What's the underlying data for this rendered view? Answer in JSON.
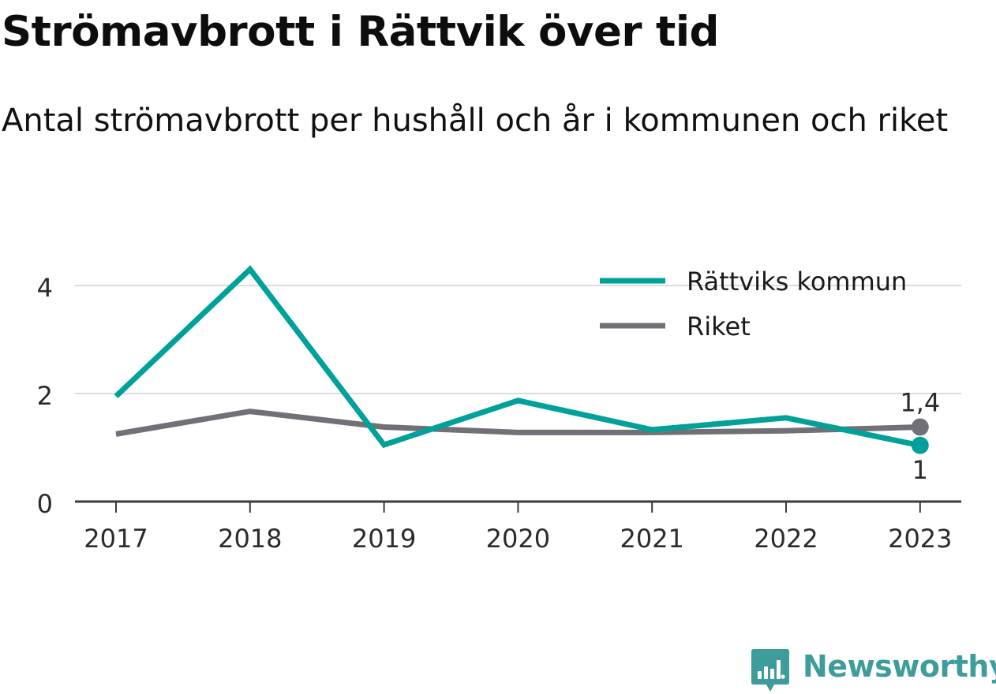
{
  "title": "Strömavbrott i Rättvik över tid",
  "subtitle": "Antal strömavbrott per hushåll och år i kommunen och riket",
  "chart_data": {
    "type": "line",
    "categories": [
      "2017",
      "2018",
      "2019",
      "2020",
      "2021",
      "2022",
      "2023"
    ],
    "series": [
      {
        "name": "Rättviks kommun",
        "color": "#00a19a",
        "values": [
          1.95,
          4.3,
          1.05,
          1.87,
          1.33,
          1.55,
          1.04
        ],
        "end_label": "1"
      },
      {
        "name": "Riket",
        "color": "#727077",
        "values": [
          1.25,
          1.67,
          1.38,
          1.28,
          1.28,
          1.31,
          1.38
        ],
        "end_label": "1,4"
      }
    ],
    "ylim": [
      0,
      4.7
    ],
    "yticks": [
      0,
      2,
      4
    ],
    "ytick_labels": [
      "0",
      "2",
      "4"
    ],
    "xlabel": "",
    "ylabel": "",
    "grid": true,
    "legend": "top-right"
  },
  "brand": {
    "name": "Newsworthy",
    "icon": "newsworthy-logo-icon",
    "color": "#3e9d9a"
  }
}
